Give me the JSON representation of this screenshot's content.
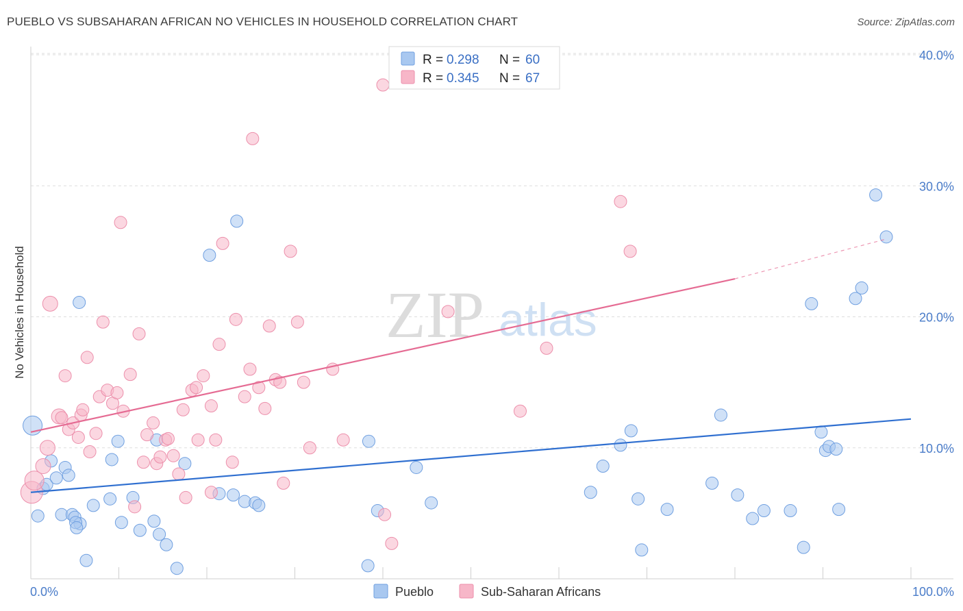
{
  "header": {
    "title": "PUEBLO VS SUBSAHARAN AFRICAN NO VEHICLES IN HOUSEHOLD CORRELATION CHART",
    "source": "Source: ZipAtlas.com"
  },
  "watermark": {
    "zip": "ZIP",
    "atlas": "atlas"
  },
  "legend": {
    "r_label": "R =",
    "n_label": "N =",
    "items": [
      {
        "name": "Pueblo",
        "r": "0.298",
        "n": "60",
        "color": "#a9c8f0"
      },
      {
        "name": "Sub-Saharan Africans",
        "r": "0.345",
        "n": "67",
        "color": "#f7b6c8"
      }
    ]
  },
  "chart_data": {
    "type": "scatter",
    "ylabel": "No Vehicles in Household",
    "xlim": [
      0,
      100
    ],
    "ylim": [
      0,
      40
    ],
    "x_tick_labels": [
      "0.0%",
      "100.0%"
    ],
    "y_ticks": [
      10,
      20,
      30,
      40
    ],
    "y_tick_labels": [
      "10.0%",
      "20.0%",
      "30.0%",
      "40.0%"
    ],
    "grid": true,
    "legend_position": "top-center",
    "series": [
      {
        "name": "Pueblo",
        "color": "#a9c8f0",
        "stroke": "#6f9fe0",
        "trend_color": "#2f6fd0",
        "trend": {
          "x0": 0,
          "y0": 6.6,
          "x1": 100,
          "y1": 12.2
        },
        "points": [
          [
            0.2,
            11.7,
            14
          ],
          [
            0.8,
            4.8,
            9
          ],
          [
            1.4,
            6.9,
            9
          ],
          [
            1.8,
            7.2,
            9
          ],
          [
            2.3,
            9.0,
            9
          ],
          [
            2.9,
            7.7,
            9
          ],
          [
            3.5,
            4.9,
            9
          ],
          [
            3.9,
            8.5,
            9
          ],
          [
            4.3,
            7.9,
            9
          ],
          [
            4.7,
            4.9,
            9
          ],
          [
            5.0,
            4.7,
            9
          ],
          [
            5.6,
            4.2,
            9
          ],
          [
            5.1,
            4.3,
            9
          ],
          [
            5.2,
            3.9,
            9
          ],
          [
            5.5,
            21.1,
            9
          ],
          [
            6.3,
            1.4,
            9
          ],
          [
            7.1,
            5.6,
            9
          ],
          [
            9.0,
            6.1,
            9
          ],
          [
            9.2,
            9.1,
            9
          ],
          [
            9.9,
            10.5,
            9
          ],
          [
            10.3,
            4.3,
            9
          ],
          [
            11.6,
            6.2,
            9
          ],
          [
            12.4,
            3.7,
            9
          ],
          [
            14.0,
            4.4,
            9
          ],
          [
            14.3,
            10.6,
            9
          ],
          [
            14.6,
            3.4,
            9
          ],
          [
            15.4,
            2.6,
            9
          ],
          [
            16.6,
            0.8,
            9
          ],
          [
            17.5,
            8.8,
            9
          ],
          [
            20.3,
            24.7,
            9
          ],
          [
            21.4,
            6.5,
            9
          ],
          [
            23.4,
            27.3,
            9
          ],
          [
            23.0,
            6.4,
            9
          ],
          [
            24.3,
            5.9,
            9
          ],
          [
            25.5,
            5.8,
            9
          ],
          [
            25.9,
            5.6,
            9
          ],
          [
            38.3,
            1.0,
            9
          ],
          [
            38.4,
            10.5,
            9
          ],
          [
            39.4,
            5.2,
            9
          ],
          [
            43.8,
            8.5,
            9
          ],
          [
            45.5,
            5.8,
            9
          ],
          [
            63.6,
            6.6,
            9
          ],
          [
            65.0,
            8.6,
            9
          ],
          [
            67.0,
            10.2,
            9
          ],
          [
            68.2,
            11.3,
            9
          ],
          [
            69.4,
            2.2,
            9
          ],
          [
            69.0,
            6.1,
            9
          ],
          [
            72.3,
            5.3,
            9
          ],
          [
            77.4,
            7.3,
            9
          ],
          [
            78.4,
            12.5,
            9
          ],
          [
            80.3,
            6.4,
            9
          ],
          [
            82.0,
            4.6,
            9
          ],
          [
            83.3,
            5.2,
            9
          ],
          [
            86.3,
            5.2,
            9
          ],
          [
            87.8,
            2.4,
            9
          ],
          [
            88.7,
            21.0,
            9
          ],
          [
            89.8,
            11.2,
            9
          ],
          [
            90.3,
            9.8,
            9
          ],
          [
            90.7,
            10.1,
            9
          ],
          [
            91.5,
            9.9,
            9
          ],
          [
            91.8,
            5.3,
            9
          ],
          [
            93.7,
            21.4,
            9
          ],
          [
            94.4,
            22.2,
            9
          ],
          [
            96.0,
            29.3,
            9
          ],
          [
            97.2,
            26.1,
            9
          ]
        ]
      },
      {
        "name": "Sub-Saharan Africans",
        "color": "#f7b6c8",
        "stroke": "#ec8fab",
        "trend_color": "#e56b93",
        "trend": {
          "x0": 0,
          "y0": 11.2,
          "x1": 80,
          "y1": 22.9
        },
        "trend_dashed": {
          "x0": 80,
          "y0": 22.9,
          "x1": 97,
          "y1": 25.9
        },
        "points": [
          [
            0.1,
            6.6,
            16
          ],
          [
            0.4,
            7.5,
            14
          ],
          [
            1.4,
            8.6,
            11
          ],
          [
            1.9,
            10.0,
            11
          ],
          [
            2.2,
            21.0,
            11
          ],
          [
            3.2,
            12.4,
            11
          ],
          [
            3.5,
            12.3,
            9
          ],
          [
            3.9,
            15.5,
            9
          ],
          [
            4.3,
            11.4,
            9
          ],
          [
            4.8,
            11.9,
            9
          ],
          [
            5.4,
            10.8,
            9
          ],
          [
            5.7,
            12.5,
            9
          ],
          [
            5.9,
            12.9,
            9
          ],
          [
            6.4,
            16.9,
            9
          ],
          [
            6.7,
            9.7,
            9
          ],
          [
            7.4,
            11.1,
            9
          ],
          [
            7.8,
            13.9,
            9
          ],
          [
            8.2,
            19.6,
            9
          ],
          [
            8.7,
            14.4,
            9
          ],
          [
            9.3,
            13.4,
            9
          ],
          [
            9.8,
            14.2,
            9
          ],
          [
            10.2,
            27.2,
            9
          ],
          [
            10.5,
            12.8,
            9
          ],
          [
            11.3,
            15.6,
            9
          ],
          [
            11.8,
            5.5,
            9
          ],
          [
            12.3,
            18.7,
            9
          ],
          [
            12.8,
            8.9,
            9
          ],
          [
            13.2,
            11.0,
            9
          ],
          [
            13.9,
            11.9,
            9
          ],
          [
            14.3,
            8.8,
            9
          ],
          [
            14.7,
            9.3,
            9
          ],
          [
            15.3,
            10.6,
            9
          ],
          [
            15.6,
            10.7,
            9
          ],
          [
            16.2,
            9.4,
            9
          ],
          [
            16.8,
            8.0,
            9
          ],
          [
            17.3,
            12.9,
            9
          ],
          [
            17.6,
            6.2,
            9
          ],
          [
            18.3,
            14.4,
            9
          ],
          [
            18.8,
            14.6,
            9
          ],
          [
            19.0,
            10.6,
            9
          ],
          [
            19.6,
            15.5,
            9
          ],
          [
            20.5,
            6.6,
            9
          ],
          [
            20.5,
            13.2,
            9
          ],
          [
            21.0,
            10.6,
            9
          ],
          [
            21.4,
            17.9,
            9
          ],
          [
            21.8,
            25.6,
            9
          ],
          [
            22.9,
            8.9,
            9
          ],
          [
            23.3,
            19.8,
            9
          ],
          [
            24.3,
            13.9,
            9
          ],
          [
            24.9,
            16.0,
            9
          ],
          [
            25.2,
            33.6,
            9
          ],
          [
            25.9,
            14.6,
            9
          ],
          [
            26.6,
            13.0,
            9
          ],
          [
            27.1,
            19.3,
            9
          ],
          [
            27.8,
            15.2,
            9
          ],
          [
            28.3,
            15.0,
            9
          ],
          [
            28.7,
            7.3,
            9
          ],
          [
            29.5,
            25.0,
            9
          ],
          [
            30.3,
            19.6,
            9
          ],
          [
            31.0,
            15.0,
            9
          ],
          [
            31.7,
            10.0,
            9
          ],
          [
            34.3,
            16.0,
            9
          ],
          [
            35.5,
            10.6,
            9
          ],
          [
            40.0,
            37.7,
            9
          ],
          [
            40.2,
            4.9,
            9
          ],
          [
            41.0,
            2.7,
            9
          ],
          [
            47.4,
            20.4,
            9
          ],
          [
            55.6,
            12.8,
            9
          ],
          [
            58.6,
            17.6,
            9
          ],
          [
            67.0,
            28.8,
            9
          ],
          [
            68.1,
            25.0,
            9
          ]
        ]
      }
    ]
  }
}
